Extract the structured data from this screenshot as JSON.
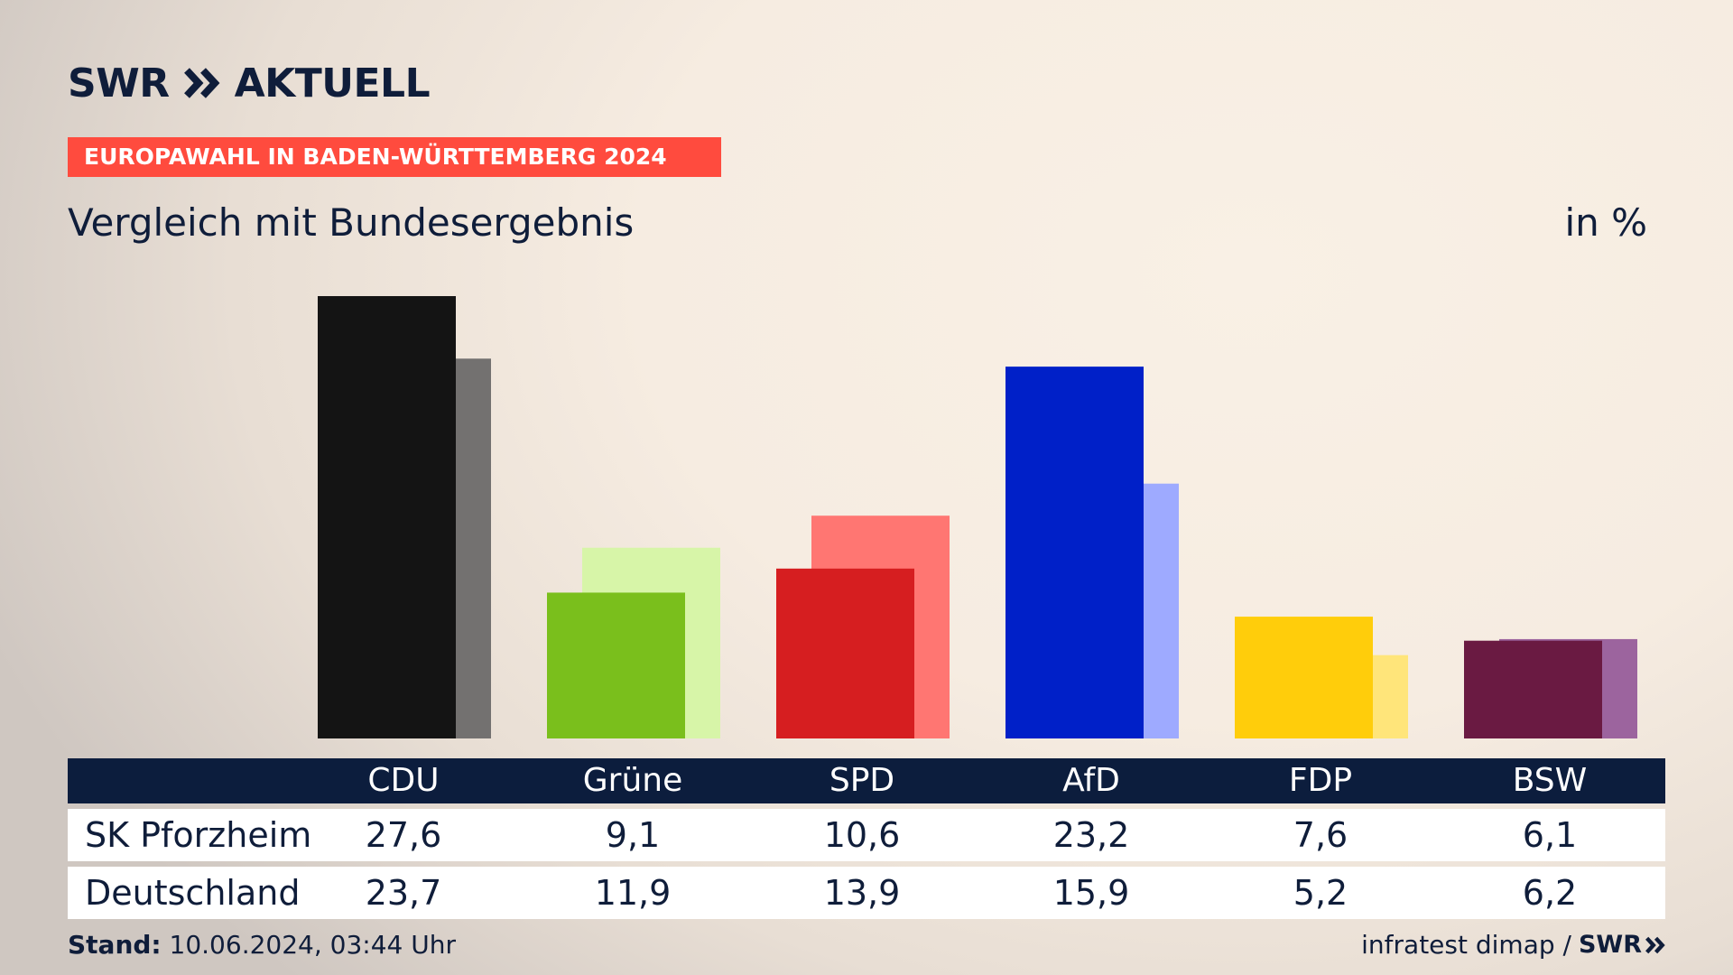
{
  "brand": {
    "swr": "SWR",
    "aktuell": "AKTUELL"
  },
  "banner": "EUROPAWAHL IN BADEN-WÜRTTEMBERG 2024",
  "subtitle": "Vergleich mit Bundesergebnis",
  "unit": "in %",
  "footer": {
    "stand_label": "Stand:",
    "stand_value": "10.06.2024, 03:44 Uhr",
    "source": "infratest dimap /",
    "source_brand": "SWR"
  },
  "colors": {
    "CDU": [
      "#141414",
      "#737170"
    ],
    "Grüne": [
      "#7abf1c",
      "#d7f5a8"
    ],
    "SPD": [
      "#d61e20",
      "#ff7672"
    ],
    "AfD": [
      "#0020c8",
      "#9eaaff"
    ],
    "FDP": [
      "#ffcd0b",
      "#ffe57a"
    ],
    "BSW": [
      "#6a1a42",
      "#9c649e"
    ]
  },
  "chart_data": {
    "type": "bar",
    "categories": [
      "CDU",
      "Grüne",
      "SPD",
      "AfD",
      "FDP",
      "BSW"
    ],
    "series": [
      {
        "name": "SK Pforzheim",
        "values": [
          27.6,
          9.1,
          10.6,
          23.2,
          7.6,
          6.1
        ]
      },
      {
        "name": "Deutschland",
        "values": [
          23.7,
          11.9,
          13.9,
          15.9,
          5.2,
          6.2
        ]
      }
    ],
    "ylim": [
      0,
      27.6
    ],
    "grid": false,
    "legend": "table-below"
  },
  "table": {
    "header": [
      "CDU",
      "Grüne",
      "SPD",
      "AfD",
      "FDP",
      "BSW"
    ],
    "rows": [
      {
        "label": "SK Pforzheim",
        "values": [
          "27,6",
          "9,1",
          "10,6",
          "23,2",
          "7,6",
          "6,1"
        ]
      },
      {
        "label": "Deutschland",
        "values": [
          "23,7",
          "11,9",
          "13,9",
          "15,9",
          "5,2",
          "6,2"
        ]
      }
    ]
  }
}
